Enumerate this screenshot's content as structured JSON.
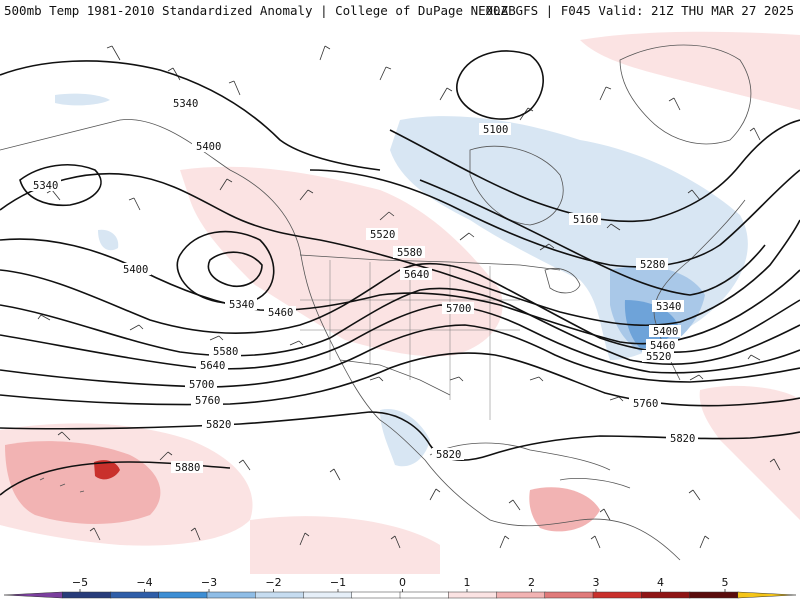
{
  "header": {
    "title": "500mb Temp 1981-2010 Standardized Anomaly | College of DuPage NEXLAB",
    "run_info": "00Z GFS | F045 Valid: 21Z THU MAR 27 2025"
  },
  "contour_labels": [
    "5100",
    "5160",
    "5280",
    "5340",
    "5340",
    "5340",
    "5340",
    "5400",
    "5400",
    "5400",
    "5460",
    "5460",
    "5520",
    "5520",
    "5580",
    "5580",
    "5640",
    "5640",
    "5700",
    "5700",
    "5760",
    "5760",
    "5820",
    "5820",
    "5820",
    "5880"
  ],
  "colorbar": {
    "ticks": [
      "−5",
      "−4",
      "−3",
      "−2",
      "−1",
      "0",
      "1",
      "2",
      "3",
      "4",
      "5"
    ],
    "colors": [
      "#7b3f9e",
      "#283c7a",
      "#2f5ea8",
      "#3d8ed4",
      "#8fbde6",
      "#c6dcf0",
      "#e6eff8",
      "#ffffff",
      "#ffffff",
      "#fbe3e3",
      "#f2b3b3",
      "#e07a7a",
      "#c9302c",
      "#8f1515",
      "#5a0c0c",
      "#f5c518"
    ]
  }
}
